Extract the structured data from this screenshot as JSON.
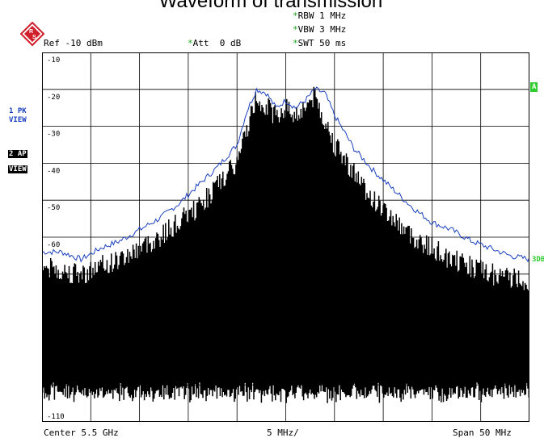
{
  "title": "Waveform of transmission",
  "settings": {
    "rbw": "RBW 1 MHz",
    "vbw": "VBW 3 MHz",
    "swt": "SWT 50 ms",
    "ref": "Ref -10 dBm",
    "att": "Att  0 dB",
    "star": "*"
  },
  "side": {
    "trace1_line1": "1 PK",
    "trace1_line2": "VIEW",
    "trace2_line1": "2 AP",
    "trace2_line2": "VIEW",
    "marker_a": "A",
    "marker_3db": "3DB"
  },
  "footer": {
    "center": "Center 5.5 GHz",
    "div": "5 MHz/",
    "span": "Span 50 MHz"
  },
  "chart_data": {
    "type": "line",
    "y_tick_labels": [
      "-10",
      "-20",
      "-30",
      "-40",
      "-50",
      "-60",
      "",
      "",
      "",
      "",
      "-110"
    ],
    "ylim": [
      -110,
      -10
    ],
    "xlim_mhz": [
      5475,
      5525
    ],
    "grid": true,
    "series": [
      {
        "trace": "1 PK",
        "color": "#1a3fbf",
        "x_mhz": [
          5475,
          5477,
          5479,
          5481,
          5483,
          5485,
          5487,
          5489,
          5491,
          5493,
          5495,
          5496,
          5497,
          5498,
          5499,
          5500,
          5501,
          5502,
          5503,
          5504,
          5505,
          5507,
          5509,
          5511,
          5513,
          5515,
          5517,
          5519,
          5521,
          5523,
          5525
        ],
        "values": [
          -64,
          -64,
          -66,
          -63,
          -61,
          -58,
          -55,
          -51,
          -46,
          -41,
          -35,
          -26,
          -20,
          -21,
          -25,
          -23,
          -25,
          -23,
          -20,
          -21,
          -27,
          -36,
          -42,
          -47,
          -52,
          -56,
          -58,
          -61,
          -63,
          -65,
          -66
        ]
      },
      {
        "trace": "2 AP",
        "color": "#000000",
        "x_mhz": [
          5475,
          5479,
          5483,
          5487,
          5491,
          5495,
          5497,
          5499,
          5500,
          5501,
          5503,
          5505,
          5509,
          5513,
          5517,
          5521,
          5525
        ],
        "values": [
          -68,
          -70,
          -66,
          -60,
          -52,
          -40,
          -22,
          -27,
          -25,
          -27,
          -22,
          -35,
          -50,
          -60,
          -66,
          -70,
          -72
        ]
      }
    ]
  }
}
